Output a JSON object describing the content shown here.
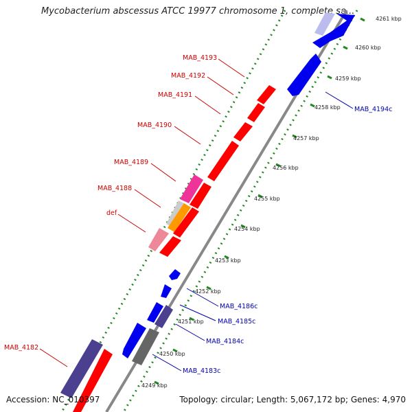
{
  "header": {
    "title": "Mycobacterium abscessus ATCC 19977 chromosome 1, complete se..."
  },
  "footer": {
    "accession": "Accession: NC_010397",
    "summary": "Topology: circular; Length: 5,067,172 bp; Genes: 4,970"
  },
  "colors": {
    "forward_gene": "#ff0000",
    "reverse_gene": "#0000ee",
    "forward_label": "#cc0000",
    "reverse_label": "#0000aa",
    "pink_gene": "#ee3399",
    "orange_gene": "#ff9900",
    "light_pink_gene": "#ee8899",
    "dark_blue_gene": "#4b3f8f",
    "grey_gene": "#666666",
    "backbone": "#888888",
    "ruler_ticks": "#228822"
  },
  "ruler": [
    {
      "label": "4249 kbp"
    },
    {
      "label": "4250 kbp"
    },
    {
      "label": "4251 kbp"
    },
    {
      "label": "4252 kbp"
    },
    {
      "label": "4253 kbp"
    },
    {
      "label": "4254 kbp"
    },
    {
      "label": "4255 kbp"
    },
    {
      "label": "4256 kbp"
    },
    {
      "label": "4257 kbp"
    },
    {
      "label": "4258 kbp"
    },
    {
      "label": "4259 kbp"
    },
    {
      "label": "4260 kbp"
    },
    {
      "label": "4261 kbp"
    }
  ],
  "forward_labels": [
    {
      "id": "MAB_4193",
      "label": "MAB_4193"
    },
    {
      "id": "MAB_4192",
      "label": "MAB_4192"
    },
    {
      "id": "MAB_4191",
      "label": "MAB_4191"
    },
    {
      "id": "MAB_4190",
      "label": "MAB_4190"
    },
    {
      "id": "MAB_4189",
      "label": "MAB_4189"
    },
    {
      "id": "MAB_4188",
      "label": "MAB_4188"
    },
    {
      "id": "def",
      "label": "def"
    },
    {
      "id": "MAB_4182",
      "label": "MAB_4182"
    }
  ],
  "reverse_labels": [
    {
      "id": "MAB_4194c",
      "label": "MAB_4194c"
    },
    {
      "id": "MAB_4186c",
      "label": "MAB_4186c"
    },
    {
      "id": "MAB_4185c",
      "label": "MAB_4185c"
    },
    {
      "id": "MAB_4184c",
      "label": "MAB_4184c"
    },
    {
      "id": "MAB_4183c",
      "label": "MAB_4183c"
    }
  ]
}
